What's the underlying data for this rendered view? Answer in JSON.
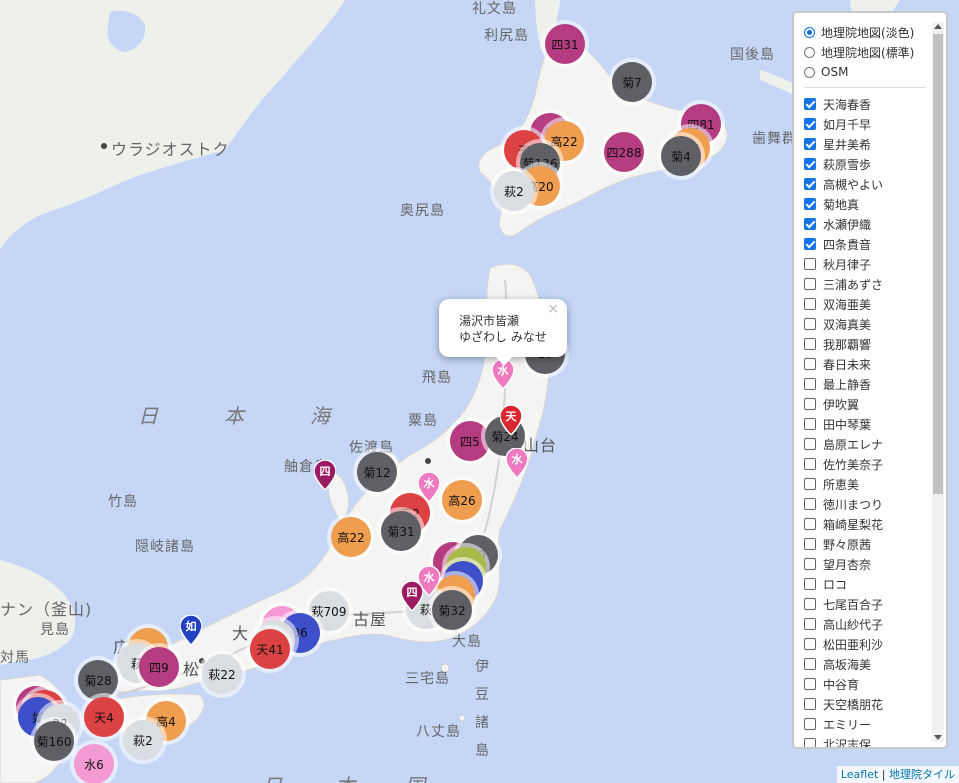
{
  "map": {
    "places": [
      {
        "id": "rebun",
        "label": "礼文島"
      },
      {
        "id": "rishiri",
        "label": "利尻島"
      },
      {
        "id": "kunashiri",
        "label": "国後島"
      },
      {
        "id": "habomai",
        "label": "歯舞群"
      },
      {
        "id": "vladivostok",
        "label": "ウラジオストク"
      },
      {
        "id": "okushiri",
        "label": "奥尻島"
      },
      {
        "id": "tobishima",
        "label": "飛島"
      },
      {
        "id": "awashima",
        "label": "粟島"
      },
      {
        "id": "sadogashima",
        "label": "佐渡島"
      },
      {
        "id": "hegurajima",
        "label": "舳倉島"
      },
      {
        "id": "takeshima",
        "label": "竹島"
      },
      {
        "id": "oki",
        "label": "隠岐諸島"
      },
      {
        "id": "busan",
        "label": "ナン（釜山)"
      },
      {
        "id": "mishima",
        "label": "見島"
      },
      {
        "id": "tsushima",
        "label": "対馬"
      },
      {
        "id": "oshima",
        "label": "大島"
      },
      {
        "id": "miyakejima",
        "label": "三宅島"
      },
      {
        "id": "hachijojima",
        "label": "八丈島"
      },
      {
        "id": "sendai",
        "label": "山台"
      },
      {
        "id": "nagoya",
        "label": "古屋"
      },
      {
        "id": "hiroshima",
        "label": "広"
      },
      {
        "id": "osaka",
        "label": "大"
      },
      {
        "id": "matsu",
        "label": "松"
      },
      {
        "id": "izu1",
        "label": "伊"
      },
      {
        "id": "izu2",
        "label": "豆"
      },
      {
        "id": "izu3",
        "label": "諸"
      },
      {
        "id": "izu4",
        "label": "島"
      },
      {
        "id": "nihonkai1",
        "label": "日"
      },
      {
        "id": "nihonkai2",
        "label": "本"
      },
      {
        "id": "nihonkai3",
        "label": "海"
      },
      {
        "id": "bottom1",
        "label": "日"
      },
      {
        "id": "bottom2",
        "label": "本"
      },
      {
        "id": "bottom3",
        "label": "国"
      }
    ],
    "clusters": [
      {
        "id": "c1",
        "label": "四31",
        "color": "pink"
      },
      {
        "id": "c2",
        "label": "菊7",
        "color": "gray"
      },
      {
        "id": "c3",
        "label": "四81",
        "color": "pink"
      },
      {
        "id": "c4",
        "label": "菊4",
        "color": "gray"
      },
      {
        "id": "c5",
        "label": "四288",
        "color": "pink"
      },
      {
        "id": "c6",
        "label": "高22",
        "color": "orange"
      },
      {
        "id": "c7",
        "label": "天",
        "color": "red"
      },
      {
        "id": "c8",
        "label": "菊136",
        "color": "gray"
      },
      {
        "id": "c9",
        "label": "高20",
        "color": "orange"
      },
      {
        "id": "c10",
        "label": "萩2",
        "color": "light"
      },
      {
        "id": "c11",
        "label": "四5",
        "color": "pink"
      },
      {
        "id": "c12",
        "label": "菊24",
        "color": "gray"
      },
      {
        "id": "c13",
        "label": "菊12",
        "color": "gray"
      },
      {
        "id": "c14",
        "label": "高26",
        "color": "orange"
      },
      {
        "id": "c15",
        "label": "天2",
        "color": "red"
      },
      {
        "id": "c16",
        "label": "菊31",
        "color": "gray"
      },
      {
        "id": "c17",
        "label": "高22",
        "color": "orange"
      },
      {
        "id": "c18",
        "label": "10",
        "color": "gray"
      },
      {
        "id": "c19",
        "label": "",
        "color": "olive"
      },
      {
        "id": "c20",
        "label": "萩",
        "color": "light"
      },
      {
        "id": "c21",
        "label": "菊32",
        "color": "gray"
      },
      {
        "id": "c22",
        "label": "萩709",
        "color": "light"
      },
      {
        "id": "c23",
        "label": "36",
        "color": "blue"
      },
      {
        "id": "c24",
        "label": "天41",
        "color": "red"
      },
      {
        "id": "c25",
        "label": "四9",
        "color": "pink"
      },
      {
        "id": "c26",
        "label": "萩",
        "color": "light"
      },
      {
        "id": "c27",
        "label": "萩22",
        "color": "light"
      },
      {
        "id": "c28",
        "label": "菊28",
        "color": "gray"
      },
      {
        "id": "c29",
        "label": "天4",
        "color": "red"
      },
      {
        "id": "c30",
        "label": "高4",
        "color": "orange"
      },
      {
        "id": "c31",
        "label": "如",
        "color": "blue"
      },
      {
        "id": "c32",
        "label": "22",
        "color": "light"
      },
      {
        "id": "c33",
        "label": "菊160",
        "color": "gray"
      },
      {
        "id": "c34",
        "label": "萩2",
        "color": "light"
      },
      {
        "id": "c35",
        "label": "水6",
        "color": "pink2"
      }
    ],
    "pins": [
      {
        "id": "p1",
        "label": "水",
        "color": "#f07ac0"
      },
      {
        "id": "p2",
        "label": "天",
        "color": "#d8272e"
      },
      {
        "id": "p3",
        "label": "水",
        "color": "#f07ac0"
      },
      {
        "id": "p4",
        "label": "四",
        "color": "#9b1c63"
      },
      {
        "id": "p5",
        "label": "水",
        "color": "#f07ac0"
      },
      {
        "id": "p6",
        "label": "水",
        "color": "#f07ac0"
      },
      {
        "id": "p7",
        "label": "四",
        "color": "#9b1c63"
      },
      {
        "id": "p8",
        "label": "如",
        "color": "#2340c2"
      }
    ],
    "popup": {
      "line1": "湯沢市皆瀬",
      "line2": "ゆざわし みなせ",
      "close": "×"
    }
  },
  "layers": {
    "base": [
      {
        "label": "地理院地図(淡色)",
        "checked": true
      },
      {
        "label": "地理院地図(標準)",
        "checked": false
      },
      {
        "label": "OSM",
        "checked": false
      }
    ],
    "overlays": [
      {
        "label": "天海春香",
        "checked": true
      },
      {
        "label": "如月千早",
        "checked": true
      },
      {
        "label": "星井美希",
        "checked": true
      },
      {
        "label": "萩原雪歩",
        "checked": true
      },
      {
        "label": "高槻やよい",
        "checked": true
      },
      {
        "label": "菊地真",
        "checked": true
      },
      {
        "label": "水瀬伊織",
        "checked": true
      },
      {
        "label": "四条貴音",
        "checked": true
      },
      {
        "label": "秋月律子",
        "checked": false
      },
      {
        "label": "三浦あずさ",
        "checked": false
      },
      {
        "label": "双海亜美",
        "checked": false
      },
      {
        "label": "双海真美",
        "checked": false
      },
      {
        "label": "我那覇響",
        "checked": false
      },
      {
        "label": "春日未来",
        "checked": false
      },
      {
        "label": "最上静香",
        "checked": false
      },
      {
        "label": "伊吹翼",
        "checked": false
      },
      {
        "label": "田中琴葉",
        "checked": false
      },
      {
        "label": "島原エレナ",
        "checked": false
      },
      {
        "label": "佐竹美奈子",
        "checked": false
      },
      {
        "label": "所恵美",
        "checked": false
      },
      {
        "label": "徳川まつり",
        "checked": false
      },
      {
        "label": "箱崎星梨花",
        "checked": false
      },
      {
        "label": "野々原茜",
        "checked": false
      },
      {
        "label": "望月杏奈",
        "checked": false
      },
      {
        "label": "ロコ",
        "checked": false
      },
      {
        "label": "七尾百合子",
        "checked": false
      },
      {
        "label": "高山紗代子",
        "checked": false
      },
      {
        "label": "松田亜利沙",
        "checked": false
      },
      {
        "label": "高坂海美",
        "checked": false
      },
      {
        "label": "中谷育",
        "checked": false
      },
      {
        "label": "天空橋朋花",
        "checked": false
      },
      {
        "label": "エミリー",
        "checked": false
      },
      {
        "label": "北沢志保",
        "checked": false
      }
    ]
  },
  "attribution": {
    "leaflet": "Leaflet",
    "sep": " | ",
    "tiles": "地理院タイル"
  }
}
